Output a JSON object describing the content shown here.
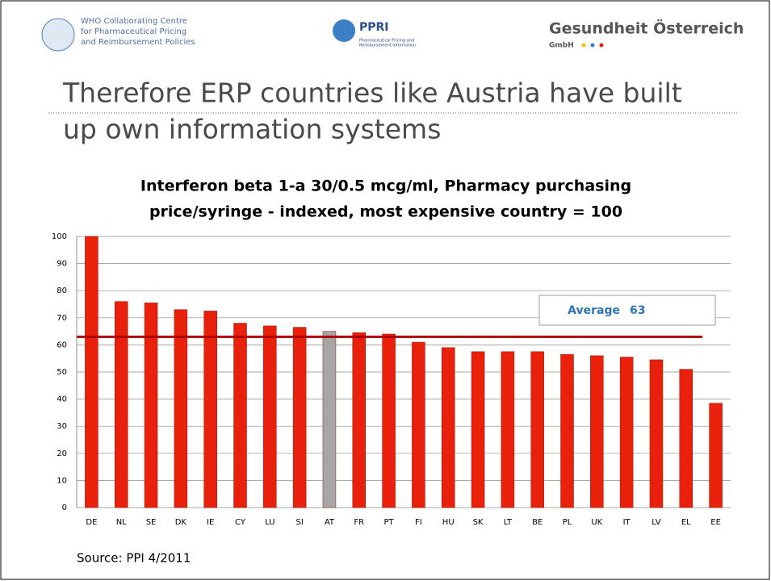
{
  "header": {
    "who_lines": [
      "WHO Collaborating Centre",
      "for Pharmaceutical Pricing",
      "and Reimbursement Policies"
    ],
    "ppri": "PPRI",
    "ppri_sub": [
      "Pharmaceutical Pricing and",
      "Reimbursement Information"
    ],
    "goe": "Gesundheit Österreich",
    "goe_sub": "GmbH"
  },
  "slide_title": [
    "Therefore ERP countries like Austria have built",
    "up own information systems"
  ],
  "source": "Source: PPI 4/2011",
  "chart_data": {
    "type": "bar",
    "title": [
      "Interferon beta 1-a 30/0.5 mcg/ml, Pharmacy purchasing",
      "price/syringe - indexed, most expensive country = 100"
    ],
    "categories": [
      "DE",
      "NL",
      "SE",
      "DK",
      "IE",
      "CY",
      "LU",
      "SI",
      "AT",
      "FR",
      "PT",
      "FI",
      "HU",
      "SK",
      "LT",
      "BE",
      "PL",
      "UK",
      "IT",
      "LV",
      "EL",
      "EE"
    ],
    "values": [
      100,
      76,
      75.5,
      73,
      72.5,
      68,
      67,
      66.5,
      65,
      64.5,
      64,
      61,
      59,
      57.5,
      57.5,
      57.5,
      56.5,
      56,
      55.5,
      54.5,
      51,
      38.5
    ],
    "colors": [
      "#e8200c",
      "#e8200c",
      "#e8200c",
      "#e8200c",
      "#e8200c",
      "#e8200c",
      "#e8200c",
      "#e8200c",
      "#a6a6a6",
      "#e8200c",
      "#e8200c",
      "#e8200c",
      "#e8200c",
      "#e8200c",
      "#e8200c",
      "#e8200c",
      "#e8200c",
      "#e8200c",
      "#e8200c",
      "#e8200c",
      "#e8200c",
      "#e8200c"
    ],
    "average": {
      "label": "Average",
      "value": 63,
      "color": "#b00000"
    },
    "ylim": [
      0,
      100
    ],
    "yticks": [
      0,
      10,
      20,
      30,
      40,
      50,
      60,
      70,
      80,
      90,
      100
    ],
    "grid": true
  }
}
